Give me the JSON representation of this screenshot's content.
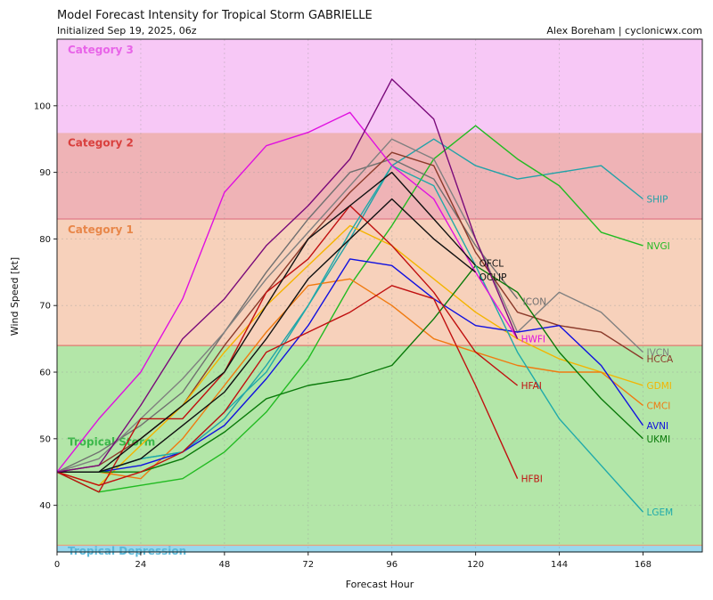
{
  "header": {
    "title": "Model Forecast Intensity for Tropical Storm GABRIELLE",
    "subtitle": "Initialized Sep 19, 2025, 06z",
    "credit": "Alex Boreham | cyclonicwx.com"
  },
  "chart_data": {
    "type": "line",
    "title": "Model Forecast Intensity for Tropical Storm GABRIELLE",
    "subtitle": "Initialized Sep 19, 2025, 06z",
    "xlabel": "Forecast Hour",
    "ylabel": "Wind Speed [kt]",
    "xlim": [
      0,
      185
    ],
    "ylim": [
      33,
      110
    ],
    "xticks": [
      0,
      24,
      48,
      72,
      96,
      120,
      144,
      168
    ],
    "yticks": [
      40,
      50,
      60,
      70,
      80,
      90,
      100
    ],
    "grid": true,
    "bands": [
      {
        "name": "Tropical Depression",
        "from": 33,
        "to": 34,
        "fill": "#9ad8ee",
        "edge": "#5bb8d8",
        "text": "#5bb8d8"
      },
      {
        "name": "Tropical Storm",
        "from": 34,
        "to": 64,
        "fill": "#b3e6a8",
        "edge": "#e8a27a",
        "text": "#3cb84a"
      },
      {
        "name": "Category 1",
        "from": 64,
        "to": 83,
        "fill": "#f7d1bb",
        "edge": "#e07a70",
        "text": "#e8874a"
      },
      {
        "name": "Category 2",
        "from": 83,
        "to": 96,
        "fill": "#efb3b6",
        "edge": "#e07a8a",
        "text": "#d9403e"
      },
      {
        "name": "Category 3",
        "from": 96,
        "to": 110,
        "fill": "#f7c8f6",
        "edge": "#f7c8f6",
        "text": "#e864e8"
      }
    ],
    "series": [
      {
        "name": "SHIP",
        "color": "#22a2a8",
        "x": [
          0,
          12,
          24,
          36,
          48,
          60,
          72,
          84,
          96,
          108,
          120,
          132,
          144,
          156,
          168
        ],
        "values": [
          45,
          45,
          47,
          48,
          53,
          61,
          70,
          80,
          91,
          95,
          91,
          89,
          90,
          91,
          86
        ]
      },
      {
        "name": "NVGI",
        "color": "#22bb22",
        "x": [
          0,
          12,
          24,
          36,
          48,
          60,
          72,
          84,
          96,
          108,
          120,
          132,
          144,
          156,
          168
        ],
        "values": [
          45,
          42,
          43,
          44,
          48,
          54,
          62,
          73,
          82,
          92,
          97,
          92,
          88,
          81,
          79
        ]
      },
      {
        "name": "ICON",
        "color": "#707070",
        "x": [
          0,
          12,
          24,
          36,
          48,
          60,
          72,
          84,
          96,
          108,
          120,
          132
        ],
        "values": [
          45,
          48,
          52,
          57,
          66,
          75,
          83,
          90,
          92,
          89,
          79,
          71
        ]
      },
      {
        "name": "IVCN",
        "color": "#808080",
        "x": [
          0,
          12,
          24,
          36,
          48,
          60,
          72,
          84,
          96,
          108,
          120,
          132,
          144,
          156,
          168
        ],
        "values": [
          45,
          47,
          53,
          59,
          66,
          74,
          81,
          88,
          95,
          92,
          80,
          66,
          72,
          69,
          63
        ]
      },
      {
        "name": "HCCA",
        "color": "#8b3a2a",
        "x": [
          0,
          12,
          24,
          36,
          48,
          60,
          72,
          84,
          96,
          108,
          120,
          132,
          144,
          156,
          168
        ],
        "values": [
          45,
          46,
          50,
          55,
          64,
          72,
          80,
          87,
          93,
          91,
          78,
          69,
          67,
          66,
          62
        ]
      },
      {
        "name": "GDMI",
        "color": "#f4b400",
        "x": [
          0,
          12,
          24,
          36,
          48,
          60,
          72,
          84,
          96,
          108,
          120,
          132,
          144,
          156,
          168
        ],
        "values": [
          45,
          43,
          49,
          55,
          63,
          70,
          76,
          82,
          79,
          74,
          69,
          65,
          62,
          60,
          58
        ]
      },
      {
        "name": "CMCI",
        "color": "#f07a10",
        "x": [
          0,
          12,
          24,
          36,
          48,
          60,
          72,
          84,
          96,
          108,
          120,
          132,
          144,
          156,
          168
        ],
        "values": [
          45,
          45,
          44,
          50,
          58,
          66,
          73,
          74,
          70,
          65,
          63,
          61,
          60,
          60,
          55
        ]
      },
      {
        "name": "AVNI",
        "color": "#1010e0",
        "x": [
          0,
          12,
          24,
          36,
          48,
          60,
          72,
          84,
          96,
          108,
          120,
          132,
          144,
          156,
          168
        ],
        "values": [
          45,
          45,
          46,
          48,
          52,
          59,
          67,
          77,
          76,
          71,
          67,
          66,
          67,
          61,
          52
        ]
      },
      {
        "name": "UKMI",
        "color": "#0a7a0a",
        "x": [
          0,
          12,
          24,
          36,
          48,
          60,
          72,
          84,
          96,
          108,
          120,
          132,
          144,
          156,
          168
        ],
        "values": [
          45,
          45,
          45,
          47,
          51,
          56,
          58,
          59,
          61,
          68,
          76,
          72,
          63,
          56,
          50
        ]
      },
      {
        "name": "LGEM",
        "color": "#20aaaa",
        "x": [
          0,
          12,
          24,
          36,
          48,
          60,
          72,
          84,
          96,
          108,
          120,
          132,
          144,
          156,
          168
        ],
        "values": [
          45,
          45,
          47,
          48,
          54,
          60,
          70,
          81,
          91,
          88,
          76,
          63,
          53,
          46,
          39
        ]
      },
      {
        "name": "HWFI",
        "color": "#e010e0",
        "x": [
          0,
          12,
          24,
          36,
          48,
          60,
          72,
          84,
          96,
          108,
          120,
          132
        ],
        "values": [
          45,
          53,
          60,
          71,
          87,
          94,
          96,
          99,
          91,
          86,
          75,
          65
        ]
      },
      {
        "name": "HFAI",
        "color": "#c01010",
        "x": [
          0,
          12,
          24,
          36,
          48,
          60,
          72,
          84,
          96,
          108,
          120,
          132
        ],
        "values": [
          45,
          42,
          53,
          53,
          60,
          72,
          77,
          85,
          79,
          72,
          63,
          58
        ]
      },
      {
        "name": "HFBI",
        "color": "#c01010",
        "x": [
          0,
          12,
          24,
          36,
          48,
          60,
          72,
          84,
          96,
          108,
          120,
          132
        ],
        "values": [
          45,
          43,
          45,
          48,
          54,
          63,
          66,
          69,
          73,
          71,
          58,
          44
        ]
      },
      {
        "name": "OFCL",
        "color": "#111111",
        "x": [
          0,
          12,
          24,
          36,
          48,
          60,
          72,
          84,
          96,
          108,
          120
        ],
        "values": [
          45,
          45,
          50,
          55,
          60,
          70,
          80,
          85,
          90,
          83,
          76
        ]
      },
      {
        "name": "OCLIP",
        "color": "#111111",
        "x": [
          0,
          12,
          24,
          36,
          48,
          60,
          72,
          84,
          96,
          108,
          120
        ],
        "values": [
          45,
          45,
          47,
          52,
          57,
          65,
          74,
          80,
          86,
          80,
          75
        ]
      },
      {
        "name": "",
        "color": "#7a0a7a",
        "x": [
          0,
          12,
          24,
          36,
          48,
          60,
          72,
          84,
          96,
          108,
          120,
          132
        ],
        "values": [
          45,
          46,
          55,
          65,
          71,
          79,
          85,
          92,
          104,
          98,
          80,
          65
        ]
      }
    ],
    "labels": [
      {
        "text": "SHIP",
        "color": "#22a2a8"
      },
      {
        "text": "NVGI",
        "color": "#22bb22"
      },
      {
        "text": "ICON",
        "color": "#707070"
      },
      {
        "text": "IVCN",
        "color": "#808080"
      },
      {
        "text": "HCCA",
        "color": "#8b3a2a"
      },
      {
        "text": "GDMI",
        "color": "#f4b400"
      },
      {
        "text": "CMCI",
        "color": "#f07a10"
      },
      {
        "text": "AVNI",
        "color": "#1010e0"
      },
      {
        "text": "UKMI",
        "color": "#0a7a0a"
      },
      {
        "text": "LGEM",
        "color": "#20aaaa"
      },
      {
        "text": "HWFI",
        "color": "#e010e0"
      },
      {
        "text": "HFAI",
        "color": "#c01010"
      },
      {
        "text": "HFBI",
        "color": "#c01010"
      },
      {
        "text": "OFCL",
        "color": "#111111"
      },
      {
        "text": "OCLIP",
        "color": "#111111"
      }
    ]
  }
}
